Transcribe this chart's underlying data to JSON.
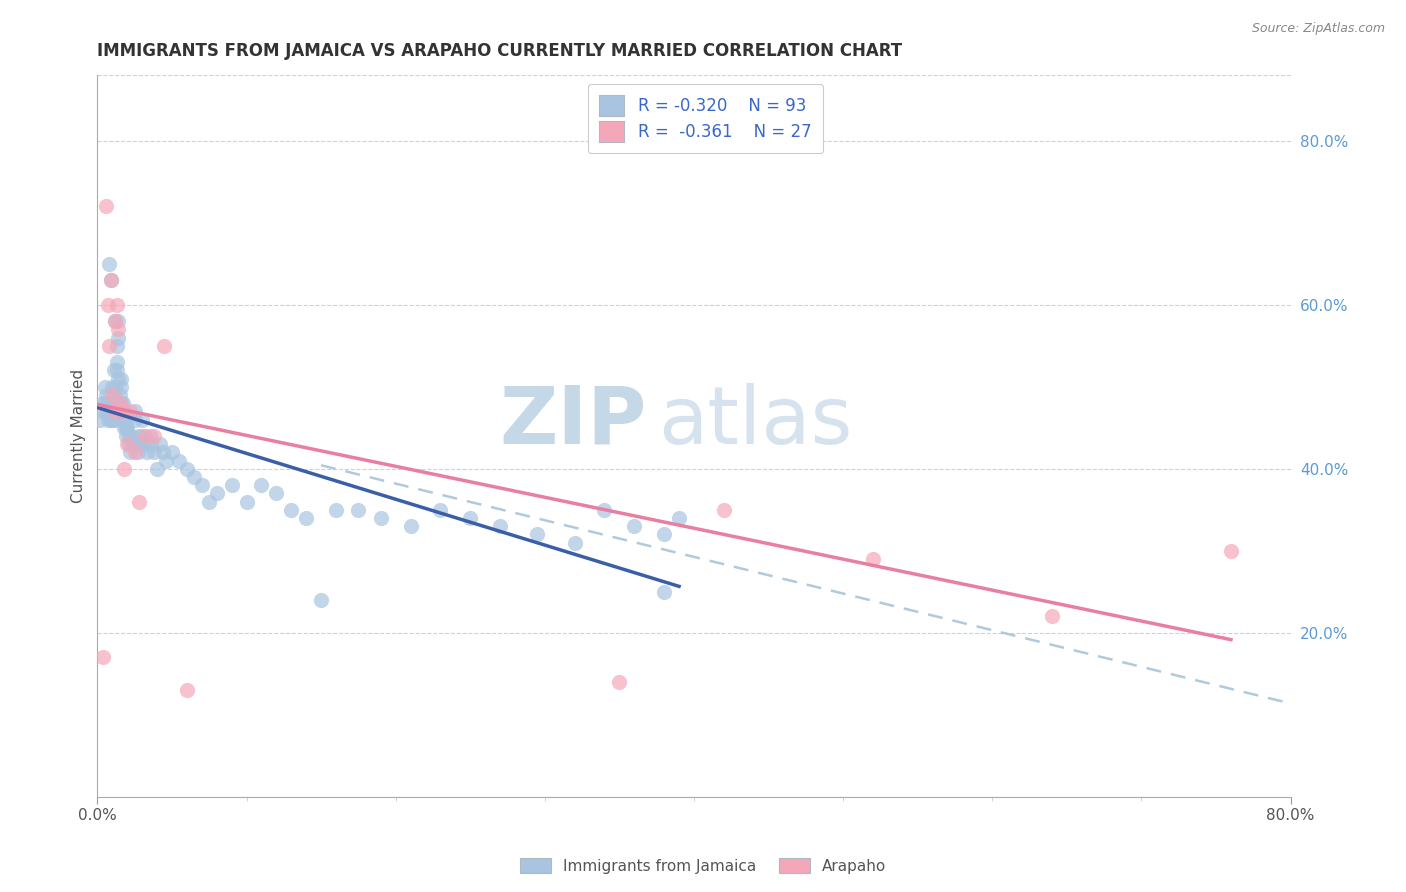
{
  "title": "IMMIGRANTS FROM JAMAICA VS ARAPAHO CURRENTLY MARRIED CORRELATION CHART",
  "source": "Source: ZipAtlas.com",
  "ylabel": "Currently Married",
  "xlim": [
    0.0,
    0.8
  ],
  "ylim": [
    0.0,
    0.88
  ],
  "y_ticks_right": [
    0.2,
    0.4,
    0.6,
    0.8
  ],
  "y_tick_labels_right": [
    "20.0%",
    "40.0%",
    "60.0%",
    "80.0%"
  ],
  "jamaica_color": "#a8c4e0",
  "arapaho_color": "#f4a7b9",
  "jamaica_trend_color": "#3a5fa8",
  "arapaho_trend_color": "#e87fa0",
  "dashed_line_color": "#a8c4d8",
  "watermark_zip_color": "#c5d8e8",
  "watermark_atlas_color": "#c5d8e8",
  "background_color": "#ffffff",
  "grid_color": "#c8d4dc",
  "jamaica_x": [
    0.002,
    0.003,
    0.004,
    0.005,
    0.005,
    0.006,
    0.006,
    0.007,
    0.007,
    0.008,
    0.008,
    0.009,
    0.009,
    0.01,
    0.01,
    0.01,
    0.01,
    0.011,
    0.011,
    0.012,
    0.012,
    0.012,
    0.013,
    0.013,
    0.013,
    0.014,
    0.014,
    0.014,
    0.015,
    0.015,
    0.015,
    0.016,
    0.016,
    0.016,
    0.017,
    0.017,
    0.018,
    0.018,
    0.018,
    0.019,
    0.019,
    0.02,
    0.02,
    0.021,
    0.021,
    0.022,
    0.023,
    0.024,
    0.025,
    0.025,
    0.026,
    0.027,
    0.028,
    0.029,
    0.03,
    0.03,
    0.032,
    0.033,
    0.035,
    0.036,
    0.038,
    0.04,
    0.042,
    0.044,
    0.046,
    0.05,
    0.055,
    0.06,
    0.065,
    0.07,
    0.075,
    0.08,
    0.09,
    0.1,
    0.11,
    0.12,
    0.13,
    0.14,
    0.15,
    0.16,
    0.175,
    0.19,
    0.21,
    0.23,
    0.25,
    0.27,
    0.295,
    0.32,
    0.34,
    0.36,
    0.38,
    0.38,
    0.39
  ],
  "jamaica_y": [
    0.46,
    0.47,
    0.48,
    0.5,
    0.48,
    0.47,
    0.49,
    0.46,
    0.48,
    0.65,
    0.47,
    0.63,
    0.46,
    0.5,
    0.48,
    0.47,
    0.46,
    0.49,
    0.52,
    0.58,
    0.5,
    0.46,
    0.55,
    0.53,
    0.52,
    0.56,
    0.58,
    0.51,
    0.49,
    0.48,
    0.47,
    0.51,
    0.5,
    0.48,
    0.48,
    0.47,
    0.47,
    0.46,
    0.45,
    0.45,
    0.44,
    0.46,
    0.45,
    0.44,
    0.43,
    0.42,
    0.44,
    0.43,
    0.47,
    0.46,
    0.43,
    0.42,
    0.44,
    0.43,
    0.46,
    0.44,
    0.43,
    0.42,
    0.44,
    0.43,
    0.42,
    0.4,
    0.43,
    0.42,
    0.41,
    0.42,
    0.41,
    0.4,
    0.39,
    0.38,
    0.36,
    0.37,
    0.38,
    0.36,
    0.38,
    0.37,
    0.35,
    0.34,
    0.24,
    0.35,
    0.35,
    0.34,
    0.33,
    0.35,
    0.34,
    0.33,
    0.32,
    0.31,
    0.35,
    0.33,
    0.32,
    0.25,
    0.34
  ],
  "arapaho_x": [
    0.004,
    0.006,
    0.007,
    0.008,
    0.009,
    0.01,
    0.011,
    0.012,
    0.013,
    0.014,
    0.015,
    0.016,
    0.017,
    0.018,
    0.02,
    0.022,
    0.025,
    0.028,
    0.032,
    0.038,
    0.045,
    0.06,
    0.35,
    0.42,
    0.52,
    0.64,
    0.76
  ],
  "arapaho_y": [
    0.17,
    0.72,
    0.6,
    0.55,
    0.63,
    0.49,
    0.47,
    0.58,
    0.6,
    0.57,
    0.48,
    0.47,
    0.47,
    0.4,
    0.43,
    0.47,
    0.42,
    0.36,
    0.44,
    0.44,
    0.55,
    0.13,
    0.14,
    0.35,
    0.29,
    0.22,
    0.3
  ]
}
